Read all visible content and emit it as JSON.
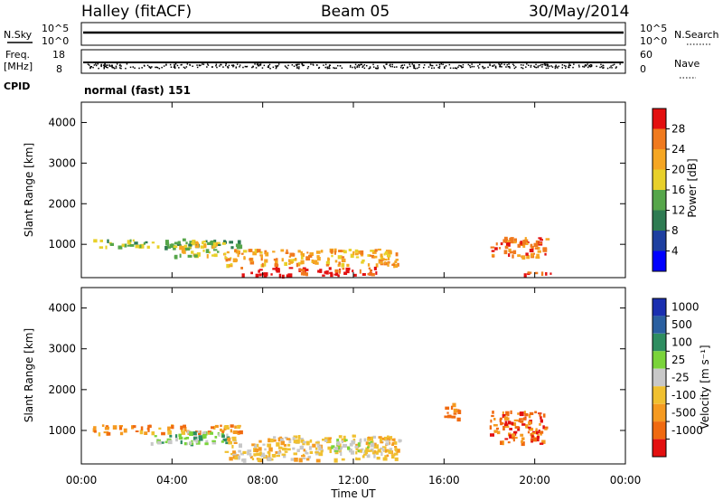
{
  "header": {
    "station": "Halley (fitACF)",
    "beam": "Beam 05",
    "date": "30/May/2014"
  },
  "top_panels": {
    "nsky": {
      "left_label": "N.Sky",
      "left_ticks": [
        "10^5",
        "10^0"
      ],
      "right_label": "N.Search",
      "right_ticks": [
        "10^5",
        "10^0"
      ]
    },
    "freq": {
      "left_label_1": "Freq.",
      "left_label_2": "[MHz]",
      "left_ticks": [
        "18",
        "8"
      ],
      "right_label": "Nave",
      "right_ticks": [
        "60",
        "0"
      ]
    },
    "cpid": {
      "label": "CPID",
      "value": "normal (fast) 151"
    }
  },
  "colors": {
    "power": [
      "#0000ff",
      "#1e3fa0",
      "#2e7b52",
      "#56a64a",
      "#e8d02a",
      "#f5a623",
      "#f07a1e",
      "#e31010"
    ],
    "velocity": [
      "#1a2fb0",
      "#2a5fa0",
      "#2e8d60",
      "#7ad43a",
      "#c8c8c8",
      "#f0c030",
      "#f59a20",
      "#f06a10",
      "#e31010"
    ]
  },
  "chart_data": [
    {
      "type": "heatmap",
      "name": "power",
      "ylabel": "Slant Range [km]",
      "yticks": [
        "1000",
        "2000",
        "3000",
        "4000"
      ],
      "ylim": [
        180,
        4500
      ],
      "xlim": [
        "00:00",
        "24:00"
      ],
      "colorbar": {
        "label": "Power [dB]",
        "ticks": [
          "4",
          "8",
          "12",
          "16",
          "20",
          "24",
          "28"
        ],
        "range": [
          0,
          32
        ]
      },
      "regions": [
        {
          "x": [
            0.5,
            7.0
          ],
          "y": [
            950,
            1150
          ],
          "level": 3
        },
        {
          "x": [
            4.0,
            6.3
          ],
          "y": [
            700,
            1100
          ],
          "level": 4
        },
        {
          "x": [
            6.3,
            14.0
          ],
          "y": [
            500,
            900
          ],
          "level": 5
        },
        {
          "x": [
            7.0,
            13.0
          ],
          "y": [
            250,
            450
          ],
          "level": 7
        },
        {
          "x": [
            18.0,
            20.5
          ],
          "y": [
            700,
            1200
          ],
          "level": 6
        },
        {
          "x": [
            19.5,
            21.0
          ],
          "y": [
            250,
            350
          ],
          "level": 7
        }
      ]
    },
    {
      "type": "heatmap",
      "name": "velocity",
      "ylabel": "Slant Range [km]",
      "yticks": [
        "1000",
        "2000",
        "3000",
        "4000"
      ],
      "ylim": [
        180,
        4500
      ],
      "xlim": [
        "00:00",
        "24:00"
      ],
      "xticks": [
        "00:00",
        "04:00",
        "08:00",
        "12:00",
        "16:00",
        "20:00",
        "00:00"
      ],
      "xlabel": "Time UT",
      "colorbar": {
        "label": "Velocity [m s⁻¹]",
        "ticks": [
          "1000",
          "500",
          "100",
          "25",
          "-25",
          "-100",
          "-500",
          "-1000"
        ]
      },
      "regions": [
        {
          "x": [
            0.5,
            7.0
          ],
          "y": [
            950,
            1150
          ],
          "level": 6
        },
        {
          "x": [
            3.0,
            6.5
          ],
          "y": [
            700,
            1000
          ],
          "level": 3
        },
        {
          "x": [
            6.3,
            14.0
          ],
          "y": [
            300,
            900
          ],
          "level": 5
        },
        {
          "x": [
            11.0,
            13.5
          ],
          "y": [
            500,
            800
          ],
          "level": 4
        },
        {
          "x": [
            18.0,
            20.5
          ],
          "y": [
            700,
            1500
          ],
          "level": 7
        },
        {
          "x": [
            16.0,
            16.6
          ],
          "y": [
            1300,
            1700
          ],
          "level": 7
        }
      ]
    }
  ]
}
